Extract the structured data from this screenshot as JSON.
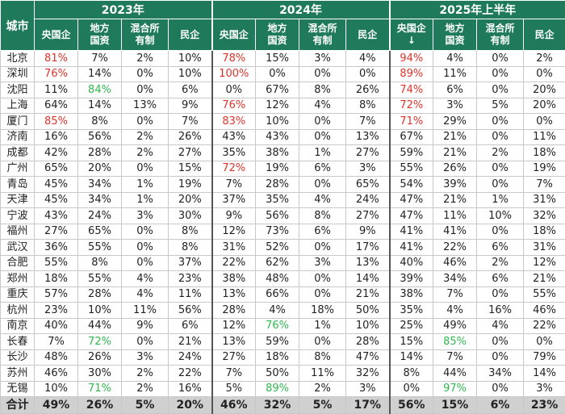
{
  "header": {
    "city": "城市",
    "years": [
      "2023年",
      "2024年",
      "2025年上半年"
    ],
    "cols": [
      [
        "央国企",
        "地方<br>国资",
        "混合所<br>有制",
        "民企"
      ],
      [
        "央国企",
        "地方<br>国资",
        "混合所<br>有制",
        "民企"
      ],
      [
        "央国企<br>↓",
        "地方<br>国资",
        "混合所<br>有制",
        "民企"
      ]
    ]
  },
  "colors": {
    "header_bg": "#1f7a5c",
    "total_bg": "#d0d0d0",
    "highlight_red": "#e0322a",
    "highlight_green": "#2eb84e"
  },
  "rows": [
    {
      "city": "北京",
      "v": [
        "81%",
        "7%",
        "2%",
        "10%",
        "78%",
        "15%",
        "3%",
        "4%",
        "94%",
        "4%",
        "0%",
        "2%"
      ],
      "hl": {
        "0": "red",
        "4": "red",
        "8": "red"
      }
    },
    {
      "city": "深圳",
      "v": [
        "76%",
        "14%",
        "0%",
        "10%",
        "100%",
        "0%",
        "0%",
        "0%",
        "89%",
        "11%",
        "0%",
        "0%"
      ],
      "hl": {
        "0": "red",
        "4": "red",
        "8": "red"
      }
    },
    {
      "city": "沈阳",
      "v": [
        "11%",
        "84%",
        "0%",
        "6%",
        "0%",
        "67%",
        "8%",
        "26%",
        "74%",
        "6%",
        "0%",
        "20%"
      ],
      "hl": {
        "1": "green",
        "8": "red"
      }
    },
    {
      "city": "上海",
      "v": [
        "64%",
        "14%",
        "13%",
        "9%",
        "76%",
        "12%",
        "4%",
        "8%",
        "72%",
        "3%",
        "5%",
        "20%"
      ],
      "hl": {
        "4": "red",
        "8": "red"
      }
    },
    {
      "city": "厦门",
      "v": [
        "85%",
        "8%",
        "0%",
        "7%",
        "83%",
        "10%",
        "0%",
        "7%",
        "71%",
        "29%",
        "0%",
        "0%"
      ],
      "hl": {
        "0": "red",
        "4": "red",
        "8": "red"
      }
    },
    {
      "city": "济南",
      "v": [
        "16%",
        "56%",
        "2%",
        "26%",
        "43%",
        "43%",
        "0%",
        "13%",
        "67%",
        "21%",
        "0%",
        "11%"
      ],
      "hl": {}
    },
    {
      "city": "成都",
      "v": [
        "42%",
        "28%",
        "2%",
        "27%",
        "35%",
        "38%",
        "1%",
        "27%",
        "59%",
        "21%",
        "2%",
        "18%"
      ],
      "hl": {}
    },
    {
      "city": "广州",
      "v": [
        "65%",
        "20%",
        "0%",
        "15%",
        "72%",
        "19%",
        "6%",
        "3%",
        "55%",
        "26%",
        "0%",
        "19%"
      ],
      "hl": {
        "4": "red"
      }
    },
    {
      "city": "青岛",
      "v": [
        "45%",
        "34%",
        "1%",
        "19%",
        "7%",
        "28%",
        "0%",
        "65%",
        "54%",
        "39%",
        "0%",
        "7%"
      ],
      "hl": {}
    },
    {
      "city": "天津",
      "v": [
        "45%",
        "34%",
        "1%",
        "20%",
        "37%",
        "35%",
        "4%",
        "24%",
        "47%",
        "21%",
        "1%",
        "31%"
      ],
      "hl": {}
    },
    {
      "city": "宁波",
      "v": [
        "43%",
        "24%",
        "3%",
        "30%",
        "9%",
        "56%",
        "8%",
        "27%",
        "47%",
        "11%",
        "10%",
        "32%"
      ],
      "hl": {}
    },
    {
      "city": "福州",
      "v": [
        "27%",
        "65%",
        "0%",
        "8%",
        "12%",
        "73%",
        "6%",
        "9%",
        "41%",
        "41%",
        "0%",
        "18%"
      ],
      "hl": {}
    },
    {
      "city": "武汉",
      "v": [
        "36%",
        "55%",
        "0%",
        "8%",
        "31%",
        "52%",
        "0%",
        "17%",
        "41%",
        "22%",
        "6%",
        "31%"
      ],
      "hl": {}
    },
    {
      "city": "合肥",
      "v": [
        "55%",
        "8%",
        "0%",
        "37%",
        "22%",
        "62%",
        "3%",
        "13%",
        "40%",
        "46%",
        "2%",
        "12%"
      ],
      "hl": {}
    },
    {
      "city": "郑州",
      "v": [
        "18%",
        "55%",
        "4%",
        "23%",
        "38%",
        "48%",
        "0%",
        "14%",
        "39%",
        "34%",
        "6%",
        "21%"
      ],
      "hl": {}
    },
    {
      "city": "重庆",
      "v": [
        "57%",
        "28%",
        "4%",
        "11%",
        "13%",
        "66%",
        "0%",
        "21%",
        "38%",
        "7%",
        "0%",
        "55%"
      ],
      "hl": {}
    },
    {
      "city": "杭州",
      "v": [
        "23%",
        "10%",
        "11%",
        "56%",
        "28%",
        "4%",
        "18%",
        "50%",
        "35%",
        "4%",
        "16%",
        "46%"
      ],
      "hl": {}
    },
    {
      "city": "南京",
      "v": [
        "40%",
        "44%",
        "9%",
        "6%",
        "12%",
        "76%",
        "1%",
        "10%",
        "25%",
        "49%",
        "4%",
        "22%"
      ],
      "hl": {
        "5": "green"
      }
    },
    {
      "city": "长春",
      "v": [
        "7%",
        "72%",
        "0%",
        "21%",
        "13%",
        "59%",
        "0%",
        "28%",
        "15%",
        "85%",
        "0%",
        "0%"
      ],
      "hl": {
        "1": "green",
        "9": "green"
      }
    },
    {
      "city": "长沙",
      "v": [
        "48%",
        "26%",
        "3%",
        "24%",
        "27%",
        "18%",
        "8%",
        "47%",
        "14%",
        "7%",
        "0%",
        "79%"
      ],
      "hl": {}
    },
    {
      "city": "苏州",
      "v": [
        "46%",
        "30%",
        "2%",
        "22%",
        "7%",
        "50%",
        "11%",
        "32%",
        "8%",
        "44%",
        "34%",
        "14%"
      ],
      "hl": {}
    },
    {
      "city": "无锡",
      "v": [
        "10%",
        "71%",
        "2%",
        "16%",
        "5%",
        "89%",
        "2%",
        "3%",
        "0%",
        "97%",
        "0%",
        "3%"
      ],
      "hl": {
        "1": "green",
        "5": "green",
        "9": "green"
      }
    }
  ],
  "total": {
    "city": "合计",
    "v": [
      "49%",
      "26%",
      "5%",
      "20%",
      "46%",
      "32%",
      "5%",
      "17%",
      "56%",
      "15%",
      "6%",
      "23%"
    ]
  }
}
